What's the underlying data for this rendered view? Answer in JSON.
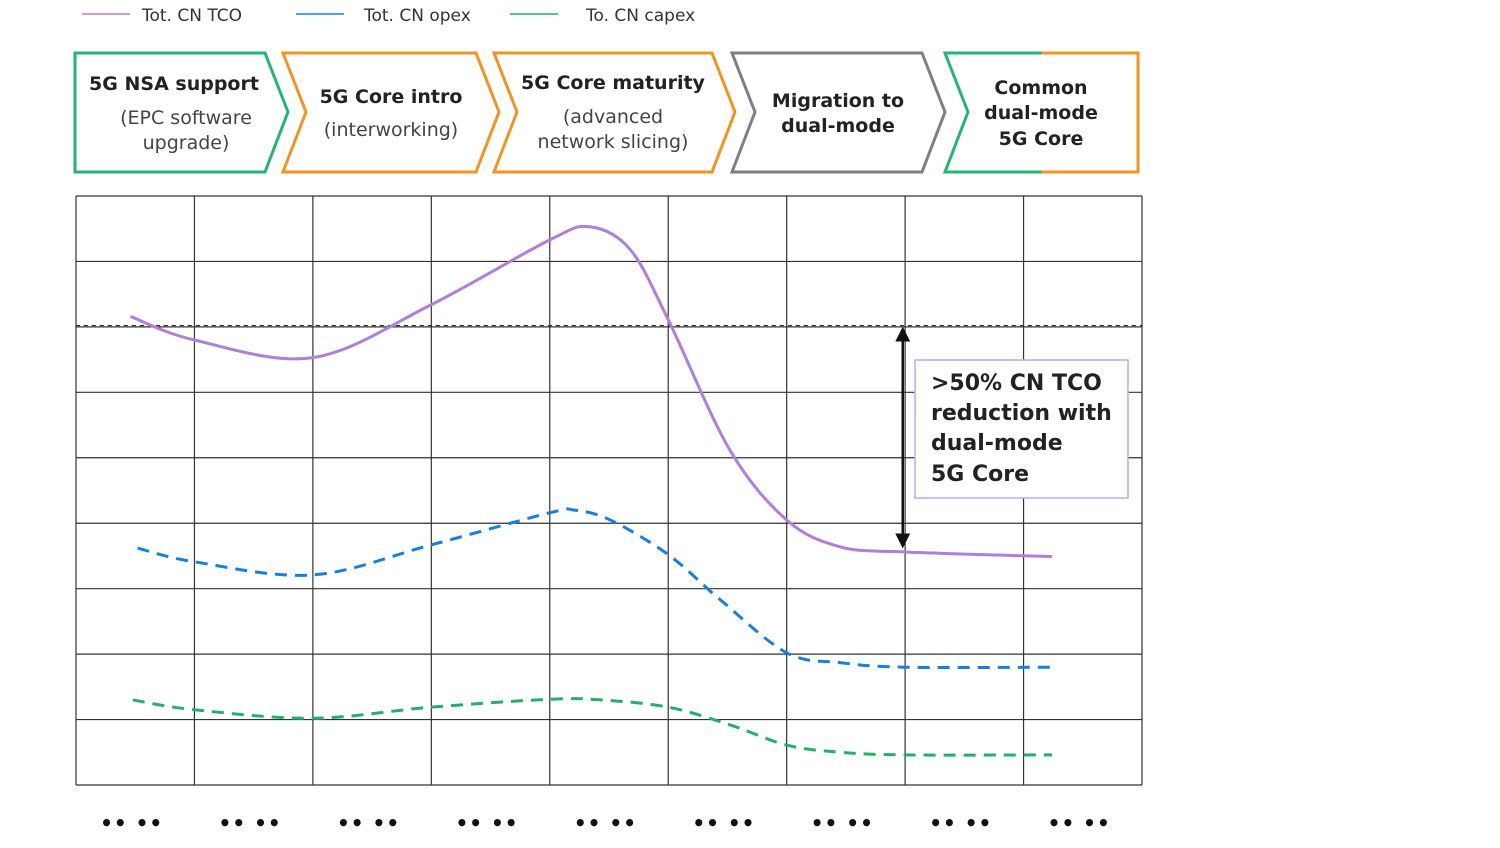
{
  "chart_data": {
    "type": "line",
    "title": "",
    "xlabel": "",
    "ylabel": "",
    "grid": true,
    "legend_position": "top-left",
    "xlim": [
      0,
      9
    ],
    "ylim": [
      0,
      9
    ],
    "x_tick_labels": [
      "•• ••",
      "•• ••",
      "•• ••",
      "•• ••",
      "•• ••",
      "•• ••",
      "•• ••",
      "•• ••",
      "•• ••"
    ],
    "legend": [
      "Tot. CN TCO",
      "Tot. CN opex",
      "To. CN capex"
    ],
    "phases": [
      {
        "title": "5G NSA support",
        "subtitle": [
          "(EPC software",
          "upgrade)"
        ],
        "color": "#22b573"
      },
      {
        "title": "5G Core intro",
        "subtitle": [
          "(interworking)"
        ],
        "color": "#f39323"
      },
      {
        "title": "5G Core maturity",
        "subtitle": [
          "(advanced",
          "network slicing)"
        ],
        "color": "#f39323"
      },
      {
        "title": "Migration to",
        "subtitle": [
          "dual-mode"
        ],
        "color": "#7f7f7f"
      },
      {
        "title": "Common",
        "subtitle": [
          "dual-mode",
          "5G Core"
        ],
        "color": "#22b573",
        "color2": "#f39323"
      }
    ],
    "reference_line": {
      "y": 7.02,
      "style": "dotted"
    },
    "annotation": {
      "lines": [
        ">50% CN TCO",
        "reduction with",
        "dual-mode",
        "5G Core"
      ],
      "border_color": "#c9a5e0",
      "arrow_x": 6.98,
      "arrow_from_y": 7.02,
      "arrow_to_y": 3.6
    },
    "series": [
      {
        "name": "Tot. CN TCO",
        "color": "#b07fd8",
        "style": "solid",
        "x": [
          0.46,
          1.0,
          2.0,
          3.0,
          4.0,
          4.34,
          4.68,
          5.0,
          5.52,
          6.0,
          6.45,
          7.0,
          8.24
        ],
        "y": [
          7.16,
          6.8,
          6.53,
          7.34,
          8.33,
          8.53,
          8.18,
          7.11,
          5.12,
          4.05,
          3.64,
          3.56,
          3.49
        ]
      },
      {
        "name": "Tot. CN opex",
        "color": "#1a7fdc",
        "style": "dashed",
        "x": [
          0.52,
          1.0,
          2.0,
          3.0,
          4.0,
          4.21,
          4.51,
          5.0,
          5.44,
          6.0,
          6.45,
          7.0,
          8.24
        ],
        "y": [
          3.62,
          3.41,
          3.21,
          3.67,
          4.16,
          4.2,
          4.05,
          3.52,
          2.83,
          2.02,
          1.87,
          1.8,
          1.8
        ]
      },
      {
        "name": "To. CN capex",
        "color": "#25b06a",
        "style": "dashed",
        "x": [
          0.48,
          1.0,
          2.0,
          3.0,
          4.0,
          4.43,
          5.0,
          5.52,
          6.0,
          6.45,
          7.0,
          8.24
        ],
        "y": [
          1.3,
          1.15,
          1.02,
          1.19,
          1.31,
          1.3,
          1.19,
          0.92,
          0.61,
          0.5,
          0.46,
          0.46
        ]
      }
    ]
  }
}
